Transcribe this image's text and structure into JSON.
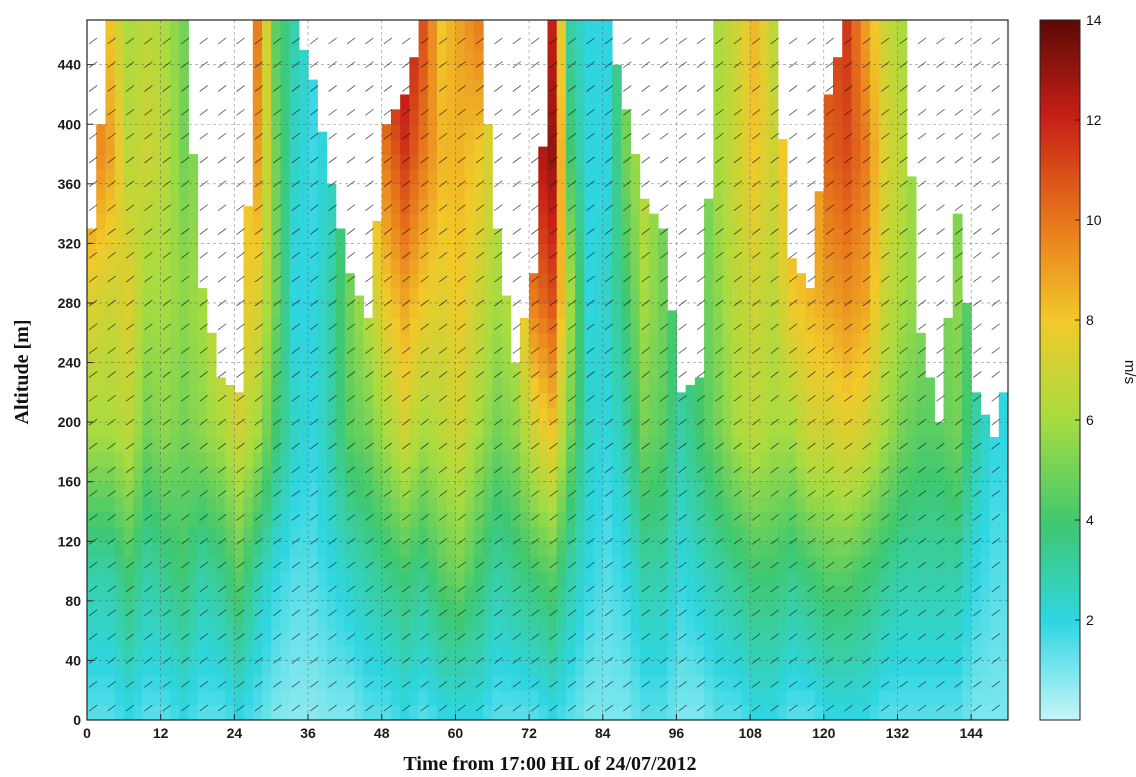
{
  "chart_data": {
    "type": "heatmap",
    "title": "",
    "xlabel": "Time from 17:00 HL of 24/07/2012",
    "ylabel": "Altitude [m]",
    "x_ticks": [
      "0",
      "12",
      "24",
      "36",
      "48",
      "60",
      "72",
      "84",
      "96",
      "108",
      "120",
      "132",
      "144"
    ],
    "y_ticks": [
      "0",
      "40",
      "80",
      "120",
      "160",
      "200",
      "240",
      "280",
      "320",
      "360",
      "400",
      "440"
    ],
    "xlim": [
      0,
      150
    ],
    "ylim": [
      0,
      470
    ],
    "colorbar": {
      "label": "m/s",
      "range": [
        0,
        14
      ],
      "ticks": [
        "2",
        "4",
        "6",
        "8",
        "10",
        "12",
        "14"
      ],
      "colormap": "jet-like (light cyan to dark red)"
    },
    "grid": true,
    "overlay": "wind vectors",
    "profiles": [
      {
        "x": 0,
        "top": 330,
        "vals": [
          1.5,
          3,
          6,
          7.5,
          10,
          10.5
        ]
      },
      {
        "x": 3,
        "top": 470,
        "vals": [
          1.5,
          3,
          6,
          7,
          9,
          8
        ]
      },
      {
        "x": 6,
        "top": 470,
        "vals": [
          2,
          4,
          6.5,
          7.5,
          6.5,
          6
        ]
      },
      {
        "x": 9,
        "top": 470,
        "vals": [
          1.5,
          3,
          5,
          6,
          7,
          6.5
        ]
      },
      {
        "x": 12,
        "top": 470,
        "vals": [
          1.5,
          3.5,
          5.5,
          6,
          6.5,
          6
        ]
      },
      {
        "x": 15,
        "top": 470,
        "vals": [
          2,
          4,
          5,
          5.5,
          5,
          5
        ]
      },
      {
        "x": 18,
        "top": 290,
        "vals": [
          1.5,
          3,
          5.5,
          6,
          5.5,
          5
        ]
      },
      {
        "x": 21,
        "top": 230,
        "vals": [
          1.5,
          3.5,
          6,
          7.5,
          7,
          6
        ]
      },
      {
        "x": 24,
        "top": 220,
        "vals": [
          2,
          4.5,
          7,
          8,
          7.5,
          6.5
        ]
      },
      {
        "x": 27,
        "top": 470,
        "vals": [
          1.5,
          3,
          6,
          7.5,
          9,
          10
        ]
      },
      {
        "x": 30,
        "top": 470,
        "vals": [
          1,
          2,
          4,
          5,
          5,
          4.5
        ]
      },
      {
        "x": 33,
        "top": 470,
        "vals": [
          0.8,
          1.5,
          2.5,
          2,
          2.5,
          3
        ]
      },
      {
        "x": 36,
        "top": 430,
        "vals": [
          0.8,
          1.5,
          2,
          2,
          1.8,
          2
        ]
      },
      {
        "x": 39,
        "top": 360,
        "vals": [
          1,
          2,
          3,
          3,
          2.5,
          2.5
        ]
      },
      {
        "x": 42,
        "top": 300,
        "vals": [
          1,
          2.5,
          4.5,
          5,
          4.5,
          4
        ]
      },
      {
        "x": 45,
        "top": 270,
        "vals": [
          1.5,
          3,
          5,
          6.5,
          8,
          9
        ]
      },
      {
        "x": 48,
        "top": 400,
        "vals": [
          1.5,
          3.5,
          6,
          8,
          10,
          12.5
        ]
      },
      {
        "x": 51,
        "top": 420,
        "vals": [
          2,
          4,
          7,
          9,
          11.5,
          13
        ]
      },
      {
        "x": 54,
        "top": 470,
        "vals": [
          1.5,
          3.5,
          6,
          8,
          10,
          11
        ]
      },
      {
        "x": 57,
        "top": 470,
        "vals": [
          2,
          4.5,
          6.5,
          7.5,
          8.5,
          8
        ]
      },
      {
        "x": 60,
        "top": 470,
        "vals": [
          2,
          5,
          7,
          8,
          8.5,
          9
        ]
      },
      {
        "x": 63,
        "top": 470,
        "vals": [
          2,
          4,
          6,
          7,
          8,
          10
        ]
      },
      {
        "x": 66,
        "top": 330,
        "vals": [
          1.5,
          3,
          5,
          6,
          6.5,
          6
        ]
      },
      {
        "x": 69,
        "top": 240,
        "vals": [
          1.5,
          3.5,
          5.5,
          6.5,
          6,
          5.5
        ]
      },
      {
        "x": 72,
        "top": 300,
        "vals": [
          1.5,
          4,
          7,
          10,
          12,
          12.5
        ]
      },
      {
        "x": 75,
        "top": 470,
        "vals": [
          2,
          4.5,
          8,
          11,
          13,
          12
        ]
      },
      {
        "x": 78,
        "top": 470,
        "vals": [
          1.5,
          3,
          5,
          6,
          4,
          3
        ]
      },
      {
        "x": 81,
        "top": 470,
        "vals": [
          1,
          2,
          2.5,
          2,
          2,
          2
        ]
      },
      {
        "x": 84,
        "top": 470,
        "vals": [
          1,
          1.5,
          2,
          2.5,
          2,
          2
        ]
      },
      {
        "x": 87,
        "top": 410,
        "vals": [
          1,
          2,
          3,
          4,
          5,
          5
        ]
      },
      {
        "x": 90,
        "top": 350,
        "vals": [
          1.5,
          3,
          5,
          6,
          6.5,
          6
        ]
      },
      {
        "x": 93,
        "top": 330,
        "vals": [
          1.5,
          3,
          4.5,
          5,
          5,
          5
        ]
      },
      {
        "x": 96,
        "top": 220,
        "vals": [
          1,
          2,
          3,
          3.5,
          3,
          3
        ]
      },
      {
        "x": 99,
        "top": 230,
        "vals": [
          1,
          2.5,
          4,
          4.5,
          4.5,
          4
        ]
      },
      {
        "x": 102,
        "top": 470,
        "vals": [
          1.5,
          3,
          5,
          5.5,
          6,
          6
        ]
      },
      {
        "x": 105,
        "top": 470,
        "vals": [
          1.5,
          3.5,
          6,
          6.5,
          7,
          7
        ]
      },
      {
        "x": 108,
        "top": 470,
        "vals": [
          2,
          4,
          6.5,
          7,
          8,
          8.5
        ]
      },
      {
        "x": 111,
        "top": 470,
        "vals": [
          2,
          4,
          6,
          6.5,
          7,
          6.5
        ]
      },
      {
        "x": 114,
        "top": 310,
        "vals": [
          1.5,
          3.5,
          6,
          8,
          9,
          10
        ]
      },
      {
        "x": 117,
        "top": 290,
        "vals": [
          1.5,
          4,
          7,
          8.5,
          8,
          7.5
        ]
      },
      {
        "x": 120,
        "top": 420,
        "vals": [
          2,
          4.5,
          7,
          9,
          10.5,
          11
        ]
      },
      {
        "x": 123,
        "top": 470,
        "vals": [
          2,
          4.5,
          7.5,
          9.5,
          11,
          11.5
        ]
      },
      {
        "x": 126,
        "top": 470,
        "vals": [
          2,
          4,
          7,
          9,
          10,
          9
        ]
      },
      {
        "x": 129,
        "top": 470,
        "vals": [
          1.5,
          3.5,
          6,
          7,
          7.5,
          7
        ]
      },
      {
        "x": 132,
        "top": 470,
        "vals": [
          1.5,
          3,
          5,
          6,
          6.5,
          6
        ]
      },
      {
        "x": 135,
        "top": 260,
        "vals": [
          1.5,
          3,
          4.5,
          5.5,
          5,
          5
        ]
      },
      {
        "x": 138,
        "top": 200,
        "vals": [
          1.5,
          3,
          4.5,
          5,
          4.5,
          4
        ]
      },
      {
        "x": 141,
        "top": 340,
        "vals": [
          1.5,
          3,
          5,
          5.5,
          5,
          4.5
        ]
      },
      {
        "x": 144,
        "top": 220,
        "vals": [
          1,
          2,
          3,
          3.5,
          3,
          3
        ]
      },
      {
        "x": 147,
        "top": 190,
        "vals": [
          1,
          1.5,
          2,
          2,
          2,
          2
        ]
      },
      {
        "x": 150,
        "top": 250,
        "vals": [
          1,
          1.5,
          2,
          2.5,
          2,
          2
        ]
      }
    ]
  }
}
